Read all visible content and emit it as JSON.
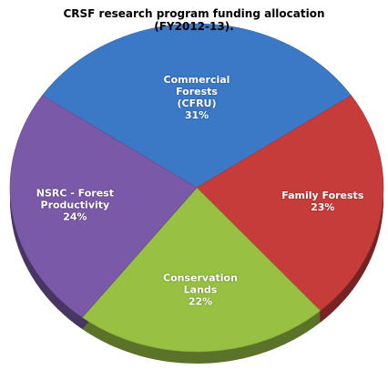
{
  "chart_data": {
    "type": "pie",
    "title": "CRSF research program funding allocation (FY2012-13).",
    "categories": [
      "Commercial Forests (CFRU)",
      "Family Forests",
      "Conservation Lands",
      "NSRC - Forest Productivity"
    ],
    "values": [
      31,
      23,
      22,
      24
    ],
    "value_labels": [
      "31%",
      "23%",
      "22%",
      "24%"
    ],
    "colors": [
      "#3b78c6",
      "#c63c3a",
      "#98c042",
      "#7a5aa8"
    ]
  }
}
